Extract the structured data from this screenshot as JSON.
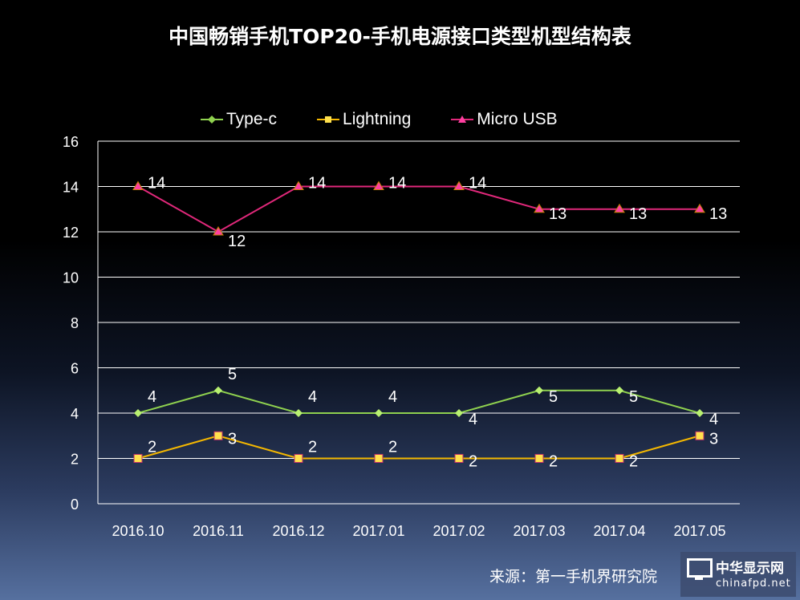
{
  "chart_data": {
    "type": "line",
    "title": "中国畅销手机TOP20-手机电源接口类型机型结构表",
    "categories": [
      "2016.10",
      "2016.11",
      "2016.12",
      "2017.01",
      "2017.02",
      "2017.03",
      "2017.04",
      "2017.05"
    ],
    "ylim": [
      0,
      16
    ],
    "yticks": [
      "0",
      "2",
      "4",
      "6",
      "8",
      "10",
      "12",
      "14",
      "16"
    ],
    "grid": true,
    "legend_position": "top",
    "series": [
      {
        "name": "Type-c",
        "color": "#8fd14f",
        "marker": "diamond",
        "values": [
          4,
          5,
          4,
          4,
          4,
          5,
          5,
          4
        ]
      },
      {
        "name": "Lightning",
        "color": "#f5b800",
        "marker": "square",
        "values": [
          2,
          3,
          2,
          2,
          2,
          2,
          2,
          3
        ]
      },
      {
        "name": "Micro USB",
        "color": "#e0287a",
        "marker": "triangle",
        "values": [
          14,
          12,
          14,
          14,
          14,
          13,
          13,
          13
        ]
      }
    ]
  },
  "source": "来源：第一手机界研究院",
  "watermark": {
    "name": "中华显示网",
    "url": "chinafpd.net"
  }
}
